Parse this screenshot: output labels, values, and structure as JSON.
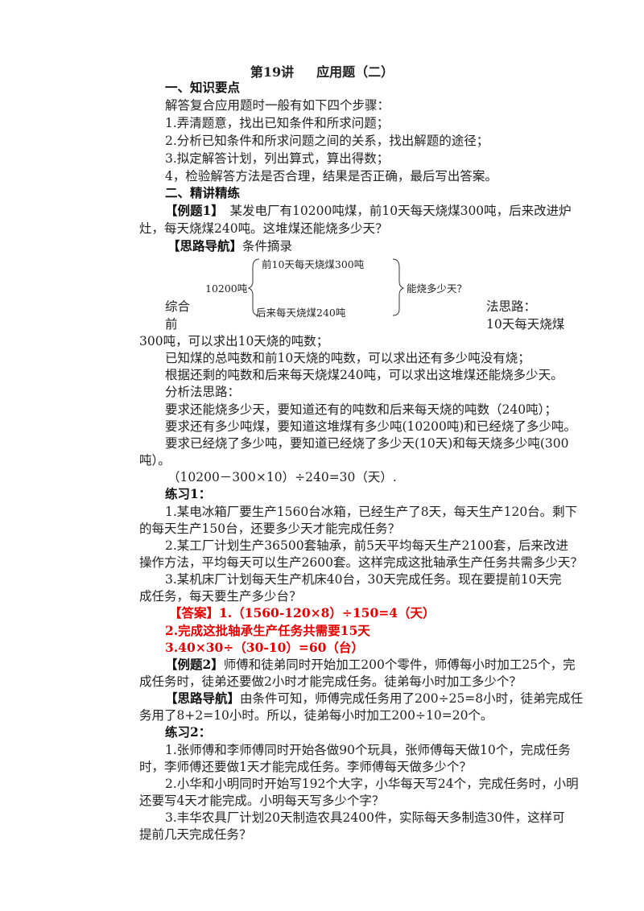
{
  "title": {
    "lecture": "第19讲",
    "topic": "应用题（二）"
  },
  "lines_a": [
    {
      "x": 205,
      "label": "一、知识要点",
      "text": ""
    },
    {
      "x": 205,
      "label": "",
      "text": "解答复合应用题时一般有如下四个步骤："
    },
    {
      "x": 205,
      "label": "",
      "text": "1.弄清题意，找出已知条件和所求问题；"
    },
    {
      "x": 205,
      "label": "",
      "text": "2.分析已知条件和所求问题之间的关系，找出解题的途径；"
    },
    {
      "x": 205,
      "label": "",
      "text": "3.拟定解答计划，列出算式，算出得数；"
    },
    {
      "x": 205,
      "label": "",
      "text": "4，检验解答方法是否合理，结果是否正确，最后写出答案。"
    },
    {
      "x": 205,
      "label": "二、精讲精练",
      "text": ""
    },
    {
      "x": 205,
      "label": "【例题1】",
      "text": "　某发电厂有10200吨煤，前10天每天烧煤300吨，后来改进炉"
    },
    {
      "x": 173,
      "label": "",
      "text": "灶，每天烧煤240吨。这堆煤还能烧多少天？"
    },
    {
      "x": 208,
      "label": "【思路导航】",
      "text": "条件摘录"
    }
  ],
  "diagram": {
    "total": "10200吨",
    "first": "前10天每天烧煤300吨",
    "later": "后来每天烧煤240吨",
    "question": "能烧多少天？"
  },
  "float_text": {
    "left1": "综合",
    "left2": "前",
    "right1": "法思路：",
    "right2": "10天每天烧煤"
  },
  "lines_b": [
    {
      "x": 173,
      "label": "",
      "text": "300吨，可以求出10天烧的吨数；",
      "c": ""
    },
    {
      "x": 205,
      "label": "",
      "text": "已知煤的总吨数和前10天烧的吨数，可以求出还有多少吨没有烧；",
      "c": ""
    },
    {
      "x": 205,
      "label": "",
      "text": "根据还剩的吨数和后来每天烧煤240吨，可以求出这堆煤还能烧多少天。",
      "c": ""
    },
    {
      "x": 205,
      "label": "",
      "text": "分析法思路：",
      "c": ""
    },
    {
      "x": 205,
      "label": "",
      "text": "要求还能烧多少天，要知道还有的吨数和后来每天烧的吨数（240吨）；",
      "c": ""
    },
    {
      "x": 205,
      "label": "",
      "text": "要求还有多少吨煤，要知道这堆煤有多少吨(10200吨)和已经烧了多少吨。",
      "c": ""
    },
    {
      "x": 205,
      "label": "",
      "text": "要求已经烧了多少吨，要知道已经烧了多少天(10天)和每天烧多少吨(300",
      "c": ""
    },
    {
      "x": 173,
      "label": "",
      "text": "吨）。",
      "c": ""
    },
    {
      "x": 208,
      "label": "",
      "text": "（10200－300×10）÷240=30（天）.",
      "c": ""
    },
    {
      "x": 205,
      "label": "练习1：",
      "text": "",
      "c": ""
    },
    {
      "x": 205,
      "label": "",
      "text": "1.某电冰箱厂要生产1560台冰箱，已经生产了8天，每天生产120台。剩下",
      "c": ""
    },
    {
      "x": 173,
      "label": "",
      "text": "的每天生产150台，还要多少天才能完成任务？",
      "c": ""
    },
    {
      "x": 205,
      "label": "",
      "text": "2.某工厂计划生产36500套轴承，前5天平均每天生产2100套，后来改进",
      "c": ""
    },
    {
      "x": 173,
      "label": "",
      "text": "操作方法，平均每天可以生产2600套。这样完成这批轴承生产任务共需多少天？",
      "c": ""
    },
    {
      "x": 205,
      "label": "",
      "text": "3.某机床厂计划每天生产机床40台，30天完成任务。现在要提前10天完",
      "c": ""
    },
    {
      "x": 173,
      "label": "",
      "text": "成任务，每天要生产多少台？",
      "c": ""
    },
    {
      "x": 210,
      "label": "",
      "text": "【答案】1.（1560-120×8）÷150=4（天）",
      "c": "red"
    },
    {
      "x": 205,
      "label": "",
      "text": "2.完成这批轴承生产任务共需要15天",
      "c": "red"
    },
    {
      "x": 205,
      "label": "",
      "text": "3.40×30÷（30-10）=60（台）",
      "c": "red"
    },
    {
      "x": 205,
      "label": "【例题2】",
      "text": "师傅和徒弟同时开始加工200个零件，师傅每小时加工25个，完",
      "c": ""
    },
    {
      "x": 173,
      "label": "",
      "text": "成任务时，徒弟还要做2小时才能完成任务。徒弟每小时加工多少个？",
      "c": ""
    },
    {
      "x": 205,
      "label": "【思路导航】",
      "text": "由条件可知，师傅完成任务用了200÷25=8小时，徒弟完成任",
      "c": ""
    },
    {
      "x": 173,
      "label": "",
      "text": "务用了8+2=10小时。所以，徒弟每小时加工200÷10=20个。",
      "c": ""
    },
    {
      "x": 205,
      "label": "练习2：",
      "text": "",
      "c": ""
    },
    {
      "x": 205,
      "label": "",
      "text": "1.张师傅和李师傅同时开始各做90个玩具，张师傅每天做10个，完成任务",
      "c": ""
    },
    {
      "x": 173,
      "label": "",
      "text": "时，李师傅还要做1天才能完成任务。李师傅每天做多少个？",
      "c": ""
    },
    {
      "x": 205,
      "label": "",
      "text": "2.小华和小明同时开始写192个大字，小华每天写24个，完成任务时，小明",
      "c": ""
    },
    {
      "x": 173,
      "label": "",
      "text": "还要写4天才能完成。小明每天写多少个字？",
      "c": ""
    },
    {
      "x": 205,
      "label": "",
      "text": "3.丰华农具厂计划20天制造农具2400件，实际每天多制造30件，这样可",
      "c": ""
    },
    {
      "x": 173,
      "label": "",
      "text": "提前几天完成任务？",
      "c": ""
    }
  ],
  "colors": {
    "answer": "#e60000",
    "text": "#222222"
  }
}
